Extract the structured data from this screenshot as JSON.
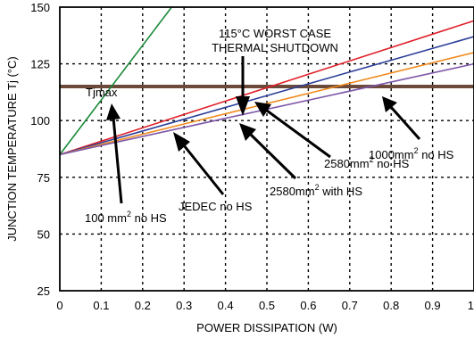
{
  "chart_data": {
    "type": "line",
    "title": "",
    "xlabel": "POWER DISSIPATION (W)",
    "ylabel": "JUNCTION TEMPERATURE Tj (°C)",
    "xlim": [
      0,
      1
    ],
    "ylim": [
      25,
      150
    ],
    "x_ticks": [
      "0",
      "0.1",
      "0.2",
      "0.3",
      "0.4",
      "0.5",
      "0.6",
      "0.7",
      "0.8",
      "0.9",
      "1"
    ],
    "y_ticks": [
      "25",
      "50",
      "75",
      "100",
      "125",
      "150"
    ],
    "grid": true,
    "series": [
      {
        "label": "100 mm² no HS",
        "color": "#1a8a3a",
        "x": [
          0,
          0.27
        ],
        "y": [
          85,
          150
        ]
      },
      {
        "label": "1000mm² no HS",
        "color": "#e0202a",
        "x": [
          0,
          1
        ],
        "y": [
          85,
          144
        ]
      },
      {
        "label": "2580mm² no HS",
        "color": "#2c3f9a",
        "x": [
          0,
          1
        ],
        "y": [
          85,
          137
        ]
      },
      {
        "label": "2580mm² with HS",
        "color": "#f08a1c",
        "x": [
          0,
          1
        ],
        "y": [
          85,
          130
        ]
      },
      {
        "label": "JEDEC no HS",
        "color": "#7d57a8",
        "x": [
          0,
          1
        ],
        "y": [
          85,
          125
        ]
      }
    ],
    "threshold": {
      "label": "Tjmax",
      "value": 115,
      "color": "#6b4a3a"
    },
    "annotations": {
      "shutdown": [
        "115°C WORST CASE",
        "THERMAL SHUTDOWN"
      ],
      "hs100": {
        "main": "100 mm",
        "sup": "2",
        "tail": " no HS"
      },
      "jedec": "JEDEC no HS",
      "hs2580with": {
        "main": "2580mm",
        "sup": "2",
        "tail": " with HS"
      },
      "hs2580no": {
        "main": "2580mm",
        "sup": "2",
        "tail": " no HS"
      },
      "hs1000": {
        "main": "1000mm",
        "sup": "2",
        "tail": " no HS"
      }
    }
  }
}
